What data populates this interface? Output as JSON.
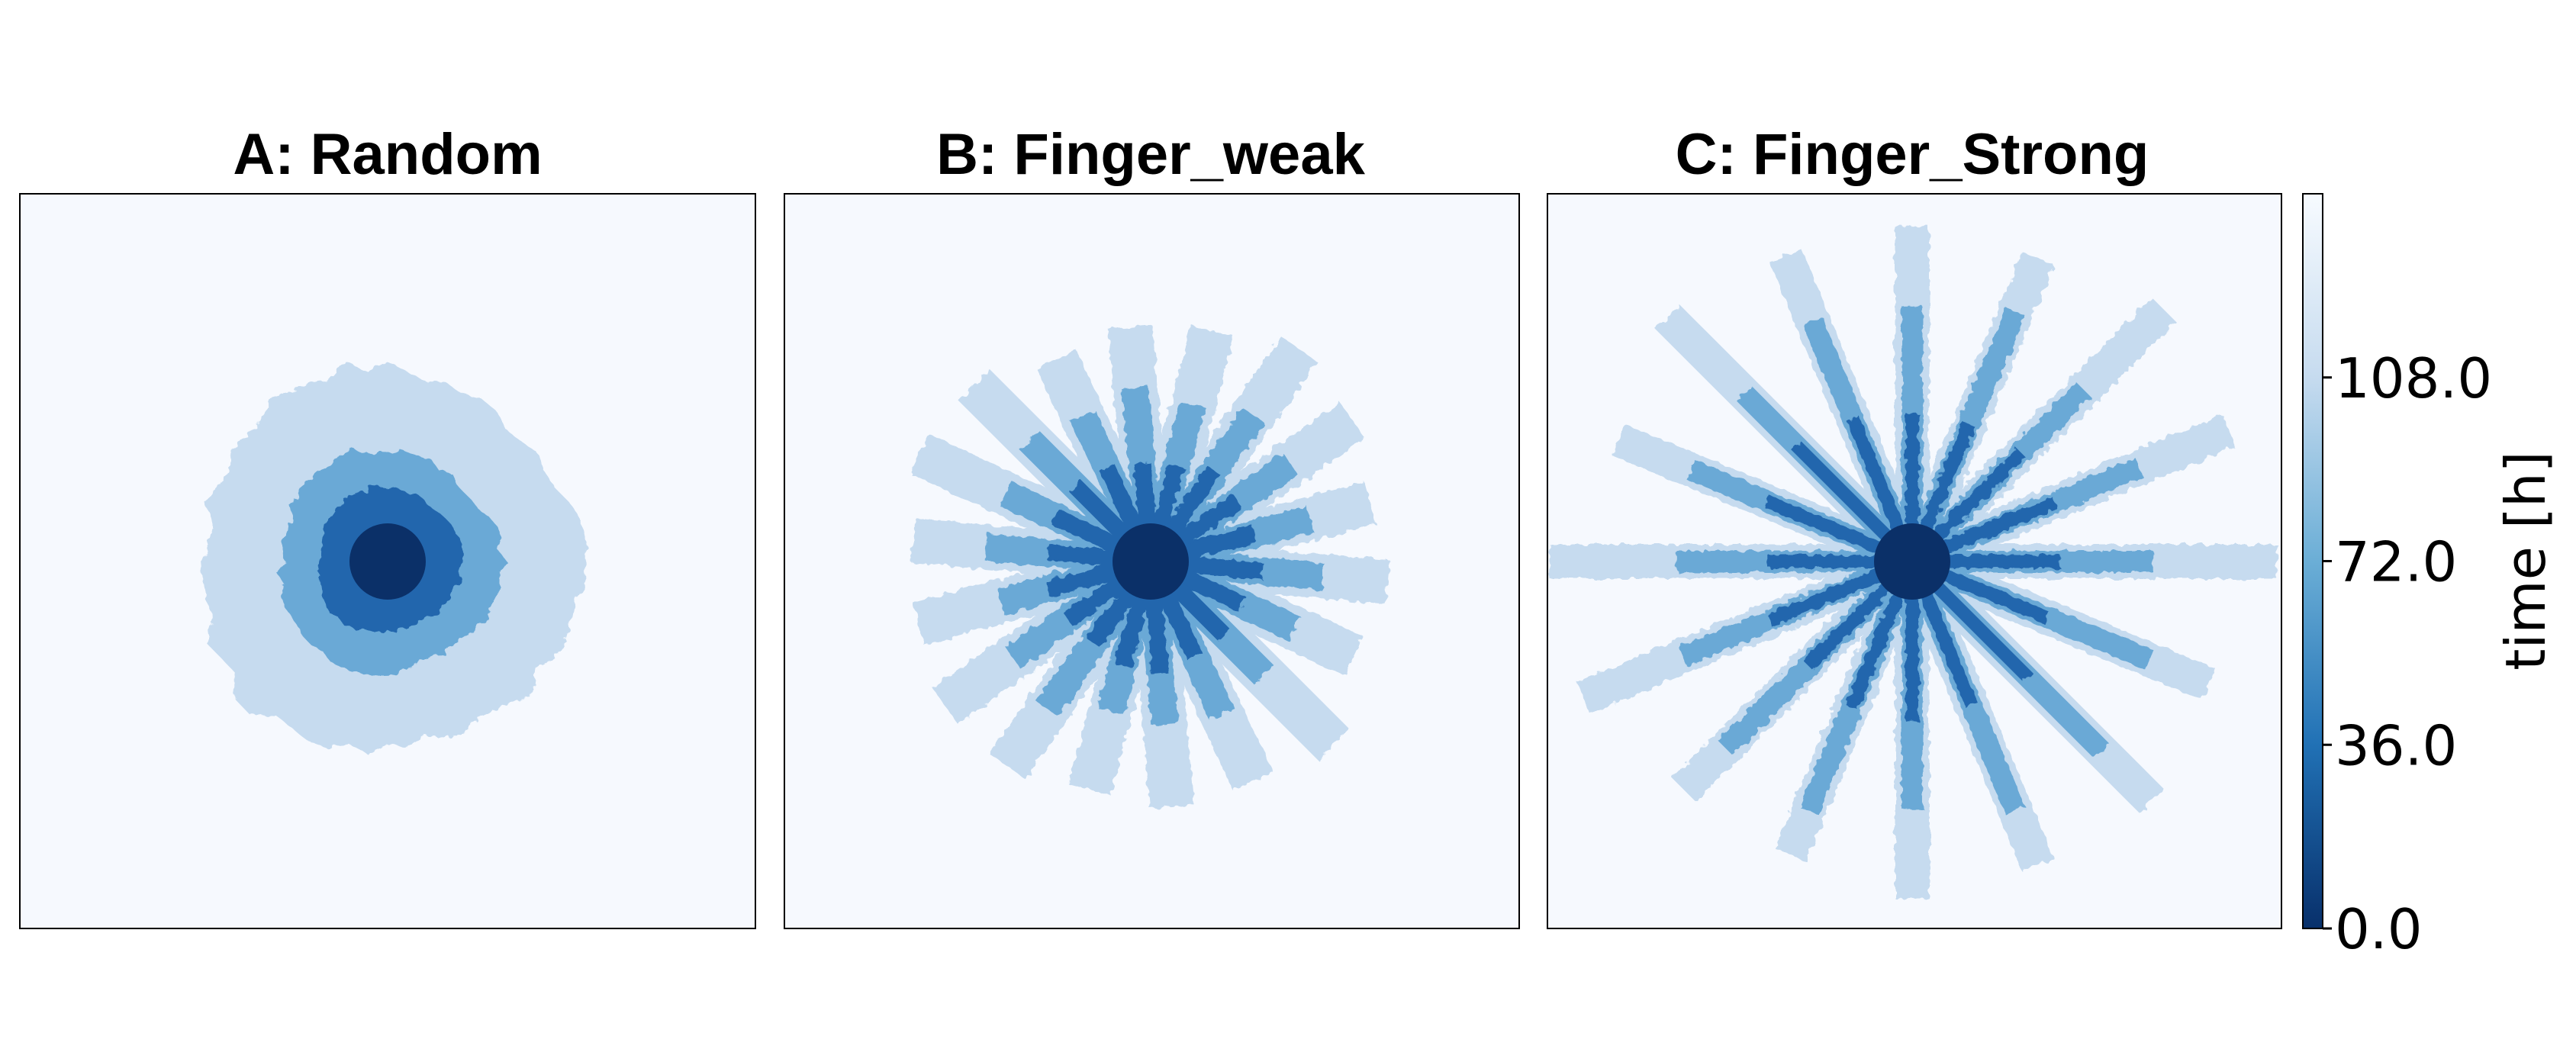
{
  "chart_data": {
    "type": "heatmap",
    "panels": [
      {
        "title": "A: Random",
        "pattern": "concentric",
        "radii": {
          "core": 50,
          "inner": 95,
          "mid": 145,
          "outer": 250
        }
      },
      {
        "title": "B: Finger_weak",
        "pattern": "fingers",
        "fingers": 18,
        "lengths": {
          "core": 50,
          "inner": 140,
          "mid": 220,
          "outer": 315
        },
        "width": 58
      },
      {
        "title": "C: Finger_Strong",
        "pattern": "fingers",
        "fingers": 16,
        "lengths": {
          "core": 50,
          "inner": 200,
          "mid": 330,
          "outer": 450
        },
        "width": 45
      }
    ],
    "colorbar": {
      "label": "time [h]",
      "ticks": [
        "0.0",
        "36.0",
        "72.0",
        "108.0"
      ],
      "range": [
        0,
        144
      ],
      "colormap": "Blues_r"
    },
    "colors": {
      "background": "#f6f9fe",
      "core": "#0b3068",
      "inner": "#2266ad",
      "mid": "#6aa9d6",
      "outer": "#c6dbef"
    }
  }
}
